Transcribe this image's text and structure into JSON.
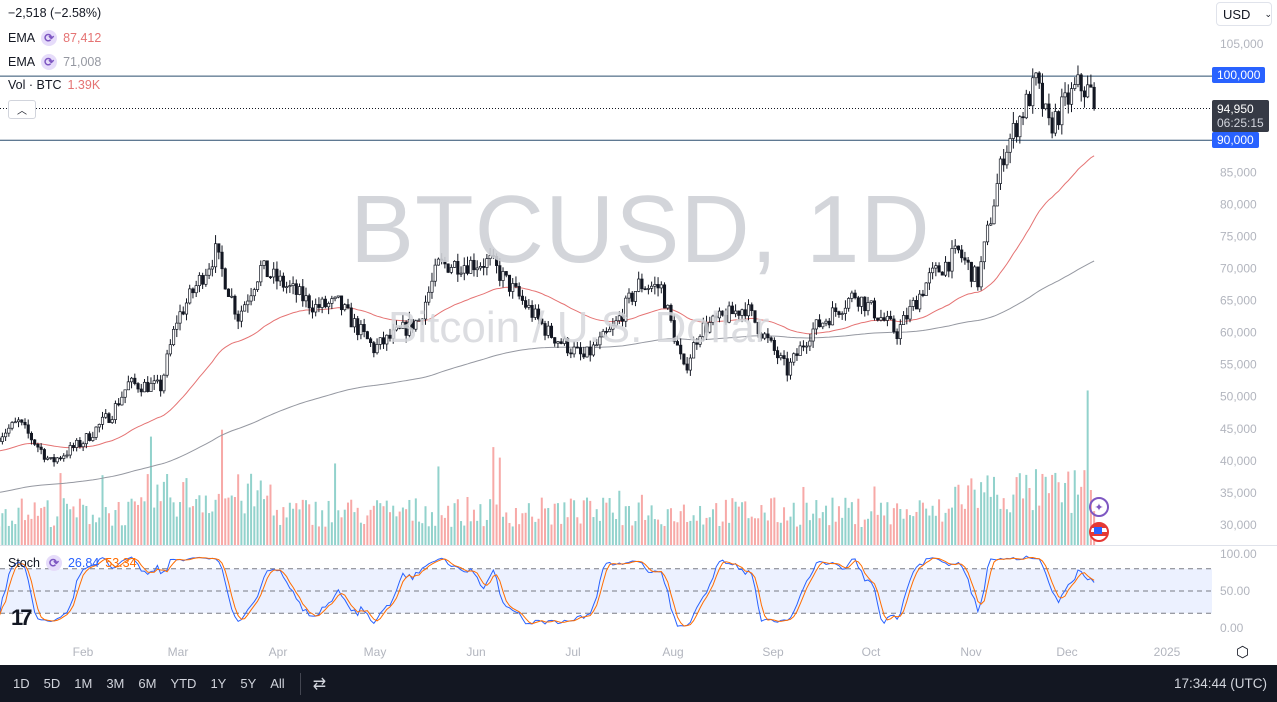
{
  "header": {
    "change": "−2,518 (−2.58%)",
    "currency": "USD"
  },
  "legend": {
    "ema1": {
      "label": "EMA",
      "value": "87,412",
      "color": "#e57373"
    },
    "ema2": {
      "label": "EMA",
      "value": "71,008",
      "color": "#9598a1"
    },
    "vol": {
      "label": "Vol · BTC",
      "value": "1.39K"
    },
    "stoch": {
      "label": "Stoch",
      "k": "26.84",
      "d": "53.34",
      "k_color": "#2962ff",
      "d_color": "#ff6d00"
    }
  },
  "watermark": {
    "symbol": "BTCUSD, 1D",
    "name": "Bitcoin / U.S. Dollar"
  },
  "price_tags": {
    "upper": "100,000",
    "lower": "90,000",
    "last": "94,950",
    "countdown": "06:25:15"
  },
  "price_axis": [
    "105,000",
    "100,000",
    "95,000",
    "90,000",
    "85,000",
    "80,000",
    "75,000",
    "70,000",
    "65,000",
    "60,000",
    "55,000",
    "50,000",
    "45,000",
    "40,000",
    "35,000",
    "30,000"
  ],
  "stoch_axis": [
    "100.00",
    "50.00",
    "0.00"
  ],
  "time_axis": [
    "Feb",
    "Mar",
    "Apr",
    "May",
    "Jun",
    "Jul",
    "Aug",
    "Sep",
    "Oct",
    "Nov",
    "Dec",
    "2025"
  ],
  "toolbar": {
    "ranges": [
      "1D",
      "5D",
      "1M",
      "3M",
      "6M",
      "YTD",
      "1Y",
      "5Y",
      "All"
    ],
    "clock": "17:34:44 (UTC)"
  },
  "icons": {
    "settings": "gear-icon",
    "compare": "compare-icon",
    "event1": "sparkle-icon",
    "event2": "us-flag-icon"
  },
  "chart_data": {
    "type": "candlestick",
    "symbol": "BTCUSD",
    "interval": "1D",
    "ylim": [
      30000,
      105000
    ],
    "horizontal_lines": [
      100000,
      90000
    ],
    "last_price": 94950,
    "ema_last": [
      87412,
      71008
    ],
    "closes_approx": [
      [
        "2024-01-06",
        44000
      ],
      [
        "2024-01-12",
        46000
      ],
      [
        "2024-01-22",
        39800
      ],
      [
        "2024-02-01",
        43000
      ],
      [
        "2024-02-10",
        47500
      ],
      [
        "2024-02-15",
        52000
      ],
      [
        "2024-02-25",
        51500
      ],
      [
        "2024-03-01",
        62000
      ],
      [
        "2024-03-13",
        72500
      ],
      [
        "2024-03-20",
        62500
      ],
      [
        "2024-03-27",
        70000
      ],
      [
        "2024-04-13",
        64000
      ],
      [
        "2024-04-20",
        64500
      ],
      [
        "2024-05-01",
        57500
      ],
      [
        "2024-05-15",
        62000
      ],
      [
        "2024-05-21",
        70500
      ],
      [
        "2024-06-06",
        71000
      ],
      [
        "2024-06-24",
        60000
      ],
      [
        "2024-07-05",
        56000
      ],
      [
        "2024-07-14",
        60500
      ],
      [
        "2024-07-22",
        67500
      ],
      [
        "2024-07-29",
        67000
      ],
      [
        "2024-08-05",
        54000
      ],
      [
        "2024-08-10",
        60500
      ],
      [
        "2024-08-24",
        64000
      ],
      [
        "2024-09-06",
        54000
      ],
      [
        "2024-09-13",
        60000
      ],
      [
        "2024-09-27",
        66000
      ],
      [
        "2024-10-10",
        60000
      ],
      [
        "2024-10-20",
        68500
      ],
      [
        "2024-10-29",
        72500
      ],
      [
        "2024-11-04",
        68000
      ],
      [
        "2024-11-12",
        88000
      ],
      [
        "2024-11-22",
        99000
      ],
      [
        "2024-11-26",
        92000
      ],
      [
        "2024-12-05",
        98500
      ],
      [
        "2024-12-09",
        97500
      ],
      [
        "2024-12-10",
        94950
      ]
    ],
    "stoch_bands": [
      80,
      50,
      20
    ]
  }
}
